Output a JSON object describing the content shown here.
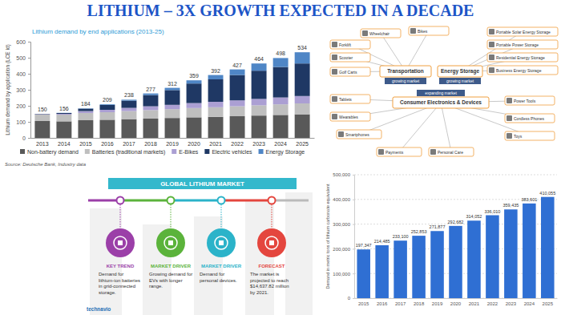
{
  "title": "LITHIUM – 3X GROWTH EXPECTED IN A DECADE",
  "chart_data": [
    {
      "type": "bar",
      "stacked": true,
      "title": "Lithium demand by end applications (2013-25)",
      "y_label": "Lithium demand by application (LCE kt)",
      "categories": [
        "2013",
        "2014",
        "2015",
        "2016",
        "2017",
        "2018",
        "2019",
        "2020",
        "2021",
        "2022",
        "2023",
        "2024",
        "2025"
      ],
      "series": [
        {
          "name": "Non-battery demand",
          "color": "#595959",
          "values": [
            105,
            103,
            110,
            113,
            117,
            120,
            124,
            128,
            131,
            135,
            139,
            143,
            147
          ]
        },
        {
          "name": "Batteries (traditional markets)",
          "color": "#bfbfbf",
          "values": [
            40,
            42,
            45,
            47,
            50,
            53,
            55,
            58,
            60,
            62,
            64,
            66,
            68
          ]
        },
        {
          "name": "E-Bikes",
          "color": "#ab9fd3",
          "values": [
            3,
            5,
            12,
            15,
            20,
            24,
            27,
            31,
            34,
            37,
            40,
            43,
            46
          ]
        },
        {
          "name": "Electric vehicles",
          "color": "#1f3864",
          "values": [
            2,
            5,
            15,
            30,
            45,
            70,
            92,
            122,
            140,
            158,
            176,
            190,
            203
          ]
        },
        {
          "name": "Energy Storage",
          "color": "#4f86c6",
          "values": [
            0,
            1,
            2,
            4,
            6,
            10,
            14,
            20,
            27,
            35,
            45,
            56,
            70
          ]
        }
      ],
      "totals": [
        150,
        156,
        184,
        209,
        238,
        277,
        312,
        359,
        392,
        427,
        464,
        498,
        534
      ],
      "ylim": [
        0,
        600
      ],
      "yticks": [
        0,
        100,
        200,
        300,
        400,
        500,
        600
      ],
      "grid": false,
      "legend": "bottom",
      "source": "Source: Deutsche Bank, Industry data"
    },
    {
      "type": "bar",
      "y_label": "Demand in metric tons of lithium carbonate equivalent",
      "categories": [
        "2015",
        "2016",
        "2017",
        "2018",
        "2019",
        "2020",
        "2021",
        "2022",
        "2023",
        "2024",
        "2025"
      ],
      "values": [
        197347,
        214485,
        233100,
        252853,
        271877,
        292682,
        314052,
        336010,
        359435,
        383601,
        410055
      ],
      "value_labels": [
        "197,347",
        "214,485",
        "233,100",
        "252,853",
        "271,877",
        "292,682",
        "314,052",
        "336,010",
        "359,435",
        "383,601",
        "410,055"
      ],
      "color": "#2f6fd3",
      "data_labels": true,
      "grid": true,
      "ylim": [
        0,
        500000
      ],
      "yticks": [
        0,
        {
          "value": 100000,
          "label": "100,000"
        },
        {
          "value": 200000,
          "label": "200,000"
        },
        {
          "value": 300000,
          "label": "300,000"
        },
        {
          "value": 400000,
          "label": "400,000"
        },
        {
          "value": 500000,
          "label": "500,000"
        }
      ]
    }
  ],
  "diagram": {
    "groups": [
      {
        "label": "Transportation",
        "caption": "growing market",
        "items": [
          "Wheelchair",
          "Bikes",
          "Forklift",
          "Scooter",
          "Golf Carts"
        ]
      },
      {
        "label": "Energy Storage",
        "caption": "growing market",
        "items": [
          "Portable Solar Energy Storage",
          "Portable Power Storage",
          "Residential Energy Storage",
          "Business Energy Storage"
        ]
      },
      {
        "label": "Consumer Electronics & Devices",
        "caption": "expanding market",
        "items": [
          "Tablets",
          "Wearables",
          "Smartphones",
          "Payments",
          "Personal Care",
          "Toys",
          "Cordless Phones",
          "Power Tools"
        ]
      }
    ]
  },
  "infographic": {
    "banner": "GLOBAL LITHIUM MARKET",
    "steps": [
      {
        "heading": "KEY TREND",
        "text": "Demand for lithium-ion batteries in grid-connected storage.",
        "color": "#9b3fa8"
      },
      {
        "heading": "MARKET DRIVER",
        "text": "Growing demand for EVs with longer range.",
        "color": "#5bb33b"
      },
      {
        "heading": "MARKET DRIVER",
        "text": "Demand for personal devices.",
        "color": "#2bb3c9"
      },
      {
        "heading": "FORECAST",
        "text": "The market is projected to reach $14,637.82 million by 2021.",
        "color": "#e4463e"
      }
    ],
    "brand": "technavio"
  }
}
